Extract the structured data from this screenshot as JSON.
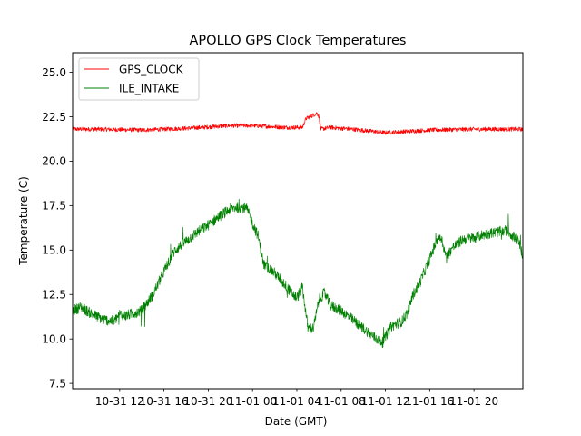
{
  "chart_data": {
    "type": "line",
    "title": "APOLLO GPS Clock Temperatures",
    "xlabel": "Date (GMT)",
    "ylabel": "Temperature (C)",
    "ylim": [
      7.2,
      26.1
    ],
    "x_range": [
      "10-31 07:45",
      "11-02 00:25"
    ],
    "y_ticks": [
      "7.5",
      "10.0",
      "12.5",
      "15.0",
      "17.5",
      "20.0",
      "22.5",
      "25.0"
    ],
    "x_ticks": [
      "10-31 12",
      "10-31 16",
      "10-31 20",
      "11-01 00",
      "11-01 04",
      "11-01 08",
      "11-01 12",
      "11-01 16",
      "11-01 20"
    ],
    "grid": false,
    "legend_position": "top-left",
    "series": [
      {
        "name": "GPS_CLOCK",
        "color": "#ff0000",
        "x": [
          "10-31 07:45",
          "10-31 10:00",
          "10-31 14:00",
          "10-31 18:00",
          "10-31 22:00",
          "11-01 00:00",
          "11-01 03:00",
          "11-01 04:30",
          "11-01 04:50",
          "11-01 05:10",
          "11-01 05:30",
          "11-01 05:50",
          "11-01 06:00",
          "11-01 06:10",
          "11-01 07:00",
          "11-01 09:00",
          "11-01 12:00",
          "11-01 16:00",
          "11-01 20:00",
          "11-02 00:25"
        ],
        "y": [
          21.8,
          21.8,
          21.75,
          21.85,
          22.0,
          22.0,
          21.9,
          21.9,
          22.4,
          22.5,
          22.6,
          22.7,
          22.5,
          21.8,
          21.9,
          21.8,
          21.6,
          21.75,
          21.8,
          21.8
        ],
        "noise": 0.12
      },
      {
        "name": "ILE_INTAKE",
        "color": "#008000",
        "x": [
          "10-31 07:45",
          "10-31 08:30",
          "10-31 09:30",
          "10-31 10:30",
          "10-31 11:30",
          "10-31 12:00",
          "10-31 12:30",
          "10-31 13:30",
          "10-31 14:00",
          "10-31 15:00",
          "10-31 16:00",
          "10-31 17:00",
          "10-31 18:00",
          "10-31 19:00",
          "10-31 20:00",
          "10-31 21:00",
          "10-31 22:00",
          "10-31 22:30",
          "10-31 23:00",
          "10-31 23:30",
          "11-01 00:00",
          "11-01 00:30",
          "11-01 01:00",
          "11-01 02:00",
          "11-01 03:00",
          "11-01 03:30",
          "11-01 04:00",
          "11-01 04:30",
          "11-01 05:00",
          "11-01 05:30",
          "11-01 06:00",
          "11-01 06:30",
          "11-01 07:00",
          "11-01 08:00",
          "11-01 09:00",
          "11-01 10:00",
          "11-01 11:00",
          "11-01 11:45",
          "11-01 12:30",
          "11-01 13:30",
          "11-01 14:00",
          "11-01 14:30",
          "11-01 15:00",
          "11-01 16:00",
          "11-01 16:40",
          "11-01 17:00",
          "11-01 17:30",
          "11-01 18:00",
          "11-01 19:00",
          "11-01 20:00",
          "11-01 21:00",
          "11-01 22:00",
          "11-01 23:00",
          "11-01 23:30",
          "11-02 00:00",
          "11-02 00:25"
        ],
        "y": [
          11.6,
          11.8,
          11.4,
          11.1,
          11.0,
          11.4,
          11.3,
          11.5,
          11.6,
          12.5,
          13.8,
          15.0,
          15.5,
          16.0,
          16.4,
          16.9,
          17.3,
          17.4,
          17.4,
          17.3,
          16.5,
          15.8,
          14.2,
          13.7,
          13.0,
          12.6,
          12.3,
          12.9,
          10.6,
          10.6,
          12.2,
          12.6,
          11.9,
          11.6,
          11.1,
          10.6,
          10.1,
          9.8,
          10.7,
          11.0,
          11.5,
          12.5,
          13.0,
          14.5,
          15.6,
          15.8,
          14.6,
          15.1,
          15.6,
          15.7,
          15.9,
          16.0,
          16.1,
          15.8,
          15.5,
          14.7
        ],
        "noise": 0.3
      }
    ]
  }
}
